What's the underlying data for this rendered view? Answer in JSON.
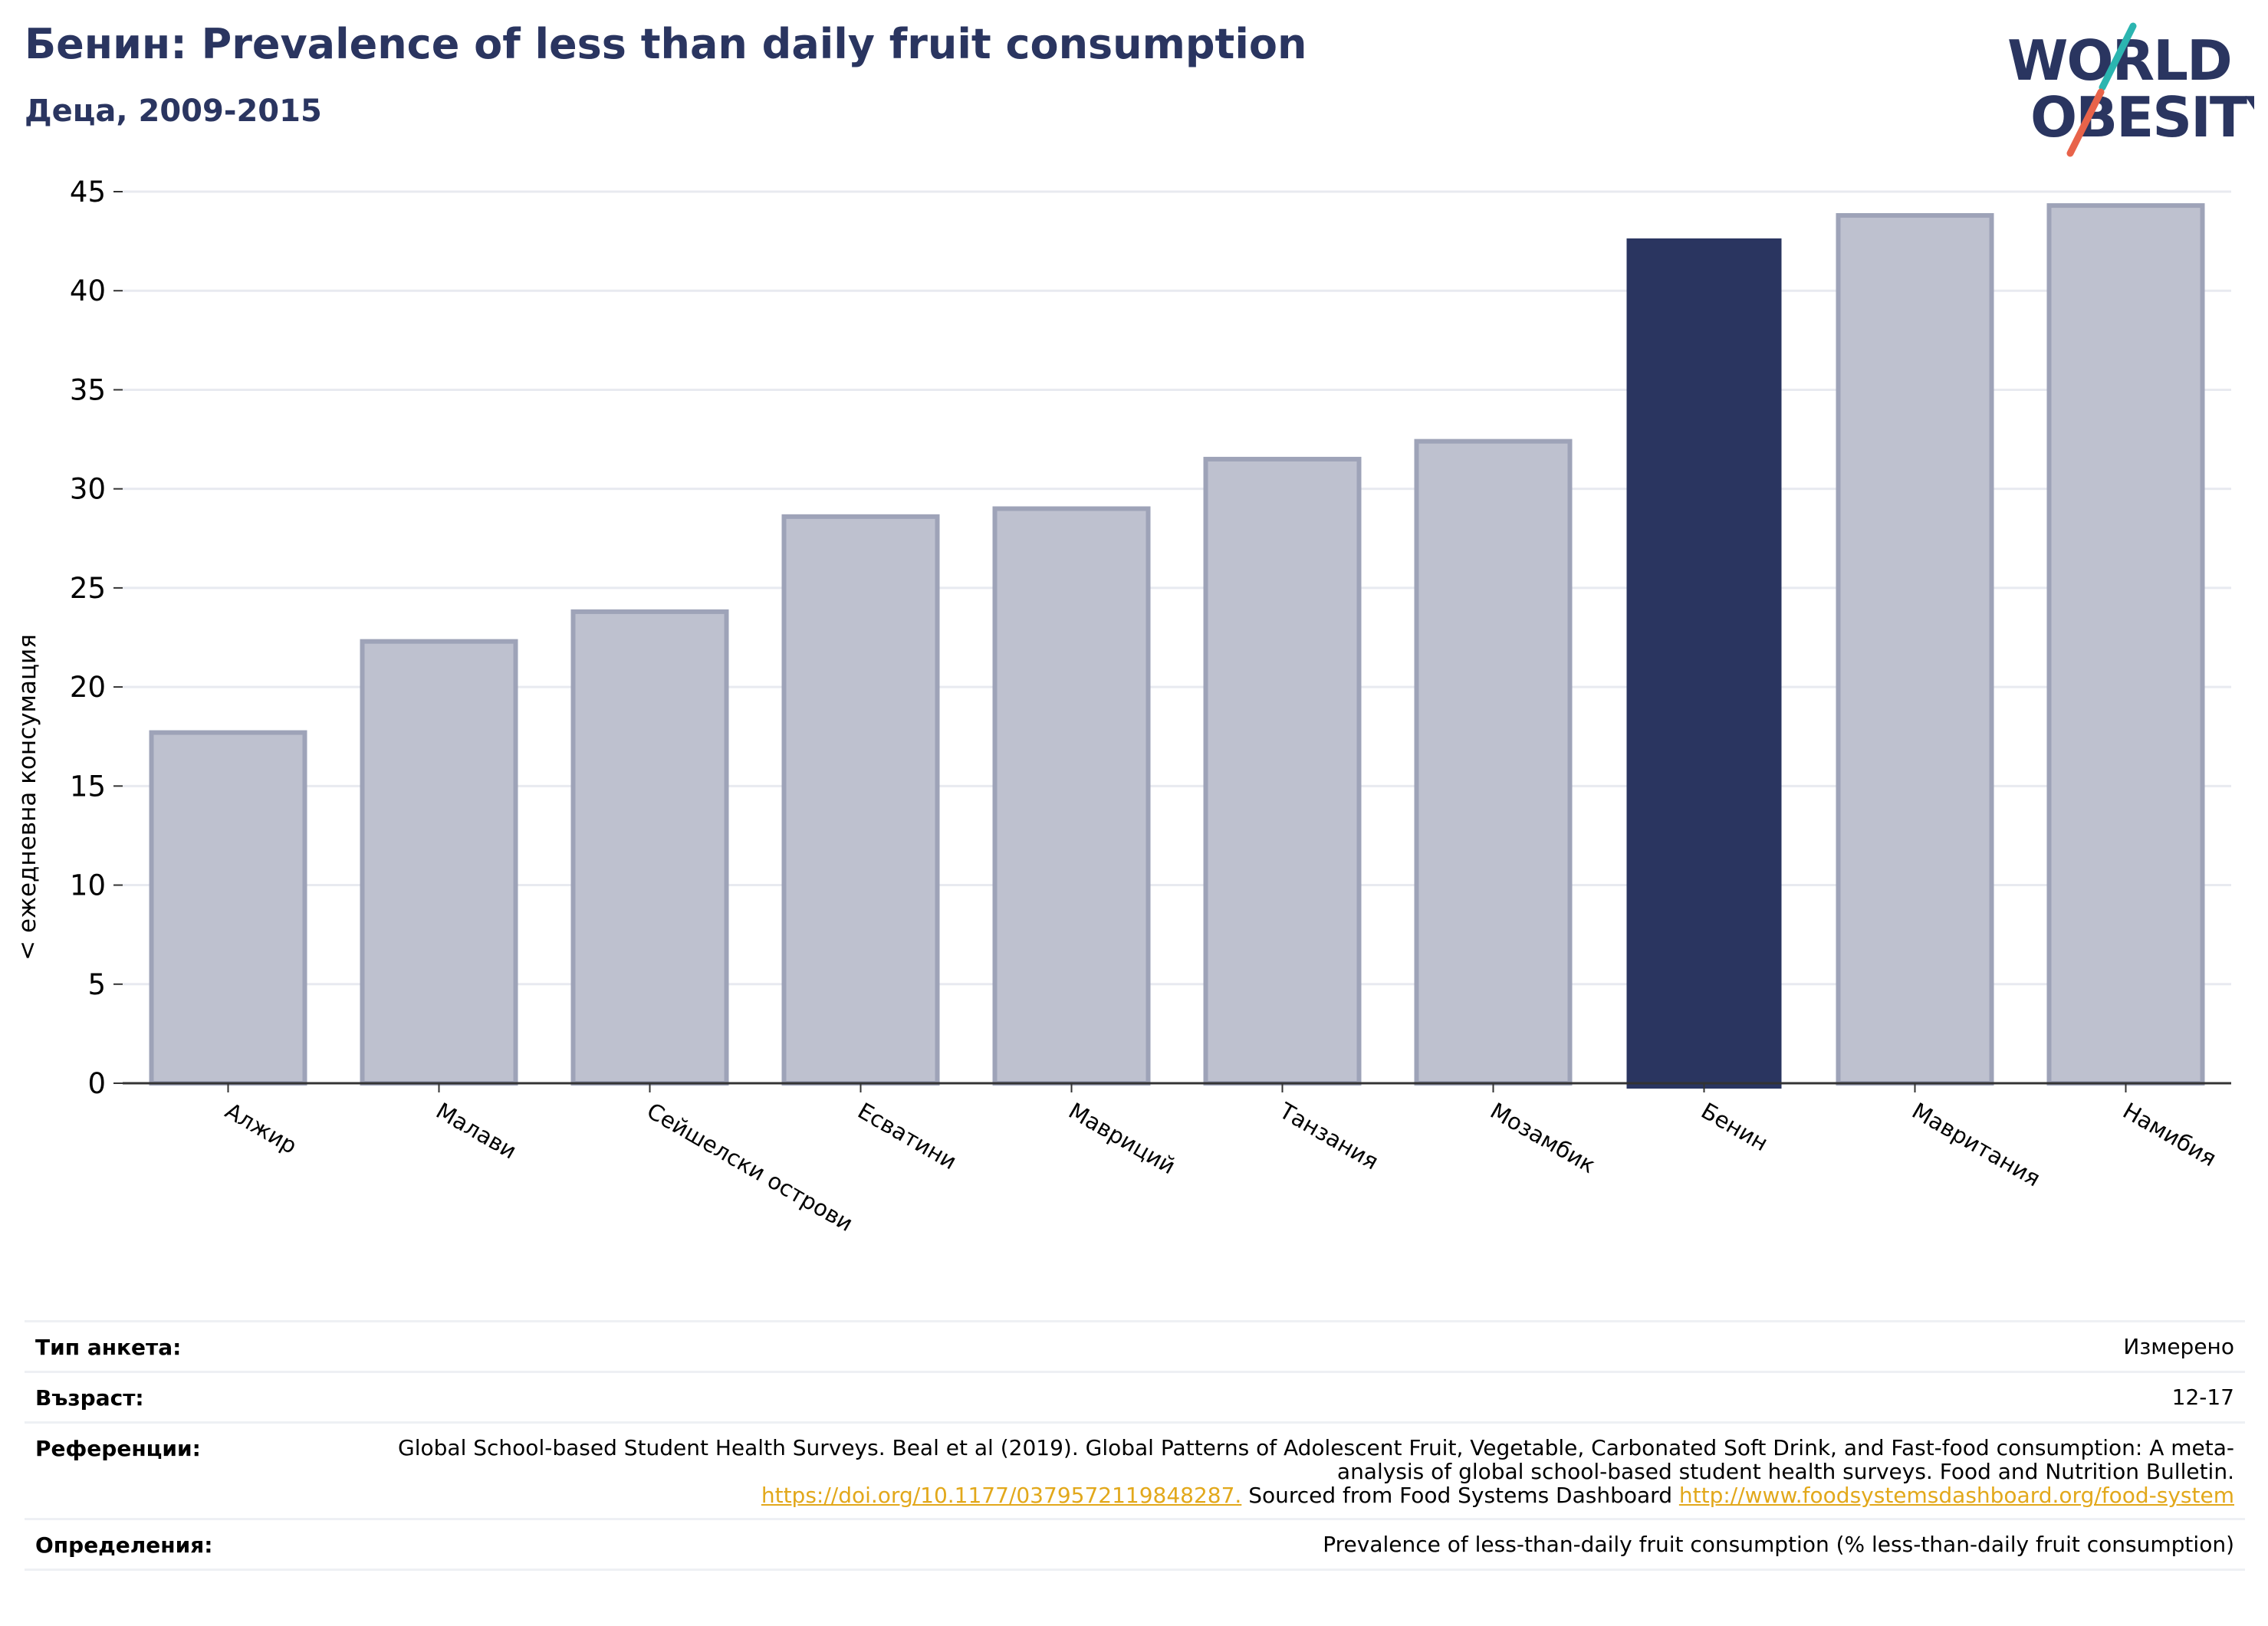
{
  "header": {
    "title": "Бенин: Prevalence of less than daily fruit consumption",
    "subtitle": "Деца, 2009-2015"
  },
  "logo": {
    "line1": "WORLD",
    "line2": "OBESITY",
    "alt_name": "world-obesity-logo"
  },
  "colors": {
    "highlight": "#2a3560",
    "bar": "#bec1cf",
    "bar_edge": "#9ea3b8",
    "title": "#2a3560",
    "link": "#e2a81b",
    "grid": "#e8eaf0"
  },
  "chart_data": {
    "type": "bar",
    "title": "Бенин: Prevalence of less than daily fruit consumption",
    "subtitle": "Деца, 2009-2015",
    "ylabel": "< ежедневна консумация",
    "xlabel": "",
    "ylim": [
      0,
      45
    ],
    "yticks": [
      0,
      5,
      10,
      15,
      20,
      25,
      30,
      35,
      40,
      45
    ],
    "grid": true,
    "highlight": "Бенин",
    "categories": [
      "Алжир",
      "Малави",
      "Сейшелски острови",
      "Есватини",
      "Мавриций",
      "Танзания",
      "Мозамбик",
      "Бенин",
      "Мавритания",
      "Намибия"
    ],
    "values": [
      17.7,
      22.3,
      23.8,
      28.6,
      29.0,
      31.5,
      32.4,
      42.6,
      43.8,
      44.3
    ]
  },
  "meta": {
    "survey_type_label": "Тип анкета:",
    "survey_type_value": "Измерено",
    "age_label": "Възраст:",
    "age_value": "12-17",
    "references_label": "Референции:",
    "references_text_1": "Global School-based Student Health Surveys. Beal et al (2019). Global Patterns of Adolescent Fruit, Vegetable, Carbonated Soft Drink, and Fast-food consumption: A meta-analysis of global school-based student health surveys. Food and Nutrition Bulletin.",
    "references_doi": "https://doi.org/10.1177/0379572119848287.",
    "references_text_2": " Sourced from Food Systems Dashboard ",
    "references_url": "http://www.foodsystemsdashboard.org/food-system",
    "definitions_label": "Определения:",
    "definitions_value": "Prevalence of less-than-daily fruit consumption (% less-than-daily fruit consumption)"
  }
}
